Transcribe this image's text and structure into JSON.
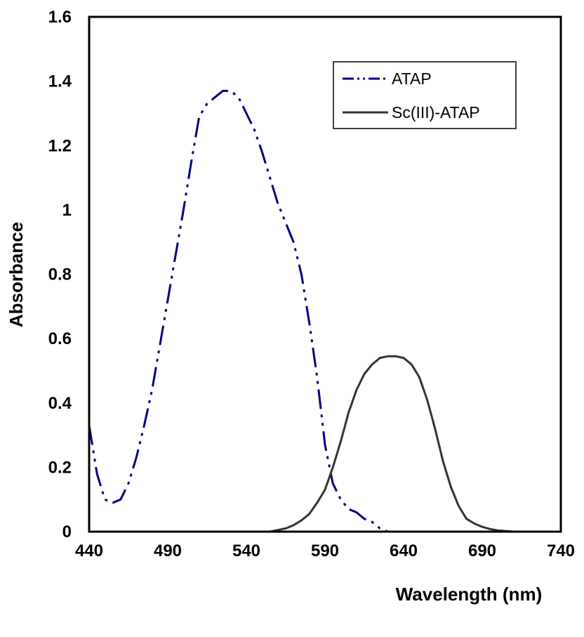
{
  "chart_data": {
    "type": "line",
    "title": "",
    "xlabel": "Wavelength (nm)",
    "ylabel": "Absorbance",
    "xlim": [
      440,
      740
    ],
    "ylim": [
      0,
      1.6
    ],
    "xticks": [
      "440",
      "490",
      "540",
      "590",
      "640",
      "690",
      "740"
    ],
    "yticks": [
      "0",
      "0.2",
      "0.4",
      "0.6",
      "0.8",
      "1",
      "1.2",
      "1.4",
      "1.6"
    ],
    "grid": false,
    "legend": "top-right",
    "series": [
      {
        "name": "ATAP",
        "color": "#000080",
        "style": "dash-dot-dot",
        "x": [
          440,
          445,
          450,
          455,
          460,
          465,
          470,
          475,
          480,
          485,
          490,
          495,
          500,
          505,
          510,
          515,
          520,
          525,
          530,
          535,
          540,
          545,
          550,
          555,
          560,
          565,
          570,
          575,
          580,
          585,
          590,
          595,
          600,
          605,
          610,
          615,
          620,
          625,
          630,
          635,
          640
        ],
        "y": [
          0.33,
          0.18,
          0.1,
          0.09,
          0.1,
          0.15,
          0.23,
          0.33,
          0.44,
          0.58,
          0.72,
          0.86,
          1.0,
          1.15,
          1.29,
          1.33,
          1.35,
          1.37,
          1.37,
          1.35,
          1.3,
          1.25,
          1.18,
          1.1,
          1.02,
          0.96,
          0.9,
          0.8,
          0.65,
          0.48,
          0.27,
          0.15,
          0.1,
          0.07,
          0.06,
          0.04,
          0.03,
          0.01,
          0.0,
          0.0,
          0.0
        ]
      },
      {
        "name": "Sc(III)-ATAP",
        "color": "#333333",
        "style": "solid",
        "x": [
          520,
          530,
          540,
          550,
          555,
          560,
          565,
          570,
          575,
          580,
          585,
          590,
          595,
          600,
          605,
          610,
          615,
          620,
          625,
          630,
          635,
          640,
          645,
          650,
          655,
          660,
          665,
          670,
          675,
          680,
          685,
          690,
          695,
          700,
          705,
          710
        ],
        "y": [
          0.0,
          0.0,
          0.0,
          0.0,
          0.0,
          0.005,
          0.01,
          0.02,
          0.035,
          0.055,
          0.09,
          0.13,
          0.2,
          0.28,
          0.37,
          0.44,
          0.49,
          0.52,
          0.54,
          0.545,
          0.545,
          0.54,
          0.52,
          0.48,
          0.41,
          0.32,
          0.22,
          0.14,
          0.08,
          0.04,
          0.025,
          0.015,
          0.008,
          0.004,
          0.002,
          0.0
        ]
      }
    ]
  }
}
